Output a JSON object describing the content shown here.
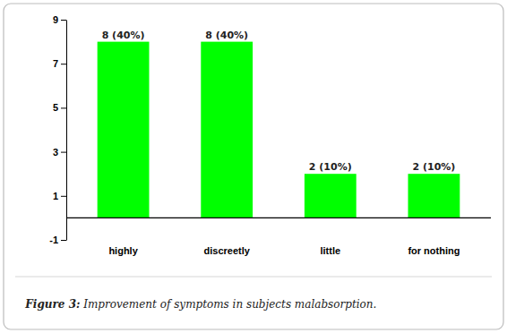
{
  "chart_data": {
    "type": "bar",
    "title": "Figure 3:",
    "subtitle": " Improvement of symptoms in subjects malabsorption.",
    "categories": [
      "highly",
      "discreetly",
      "little",
      "for nothing"
    ],
    "values": [
      8,
      8,
      2,
      2
    ],
    "value_labels": [
      "8 (40%)",
      "8 (40%)",
      "2 (10%)",
      "2 (10%)"
    ],
    "data_labels": true,
    "color": "#00FF00",
    "ylim": [
      -1,
      9
    ],
    "yticks": [
      -1,
      1,
      3,
      5,
      7,
      9
    ],
    "grid": false
  }
}
